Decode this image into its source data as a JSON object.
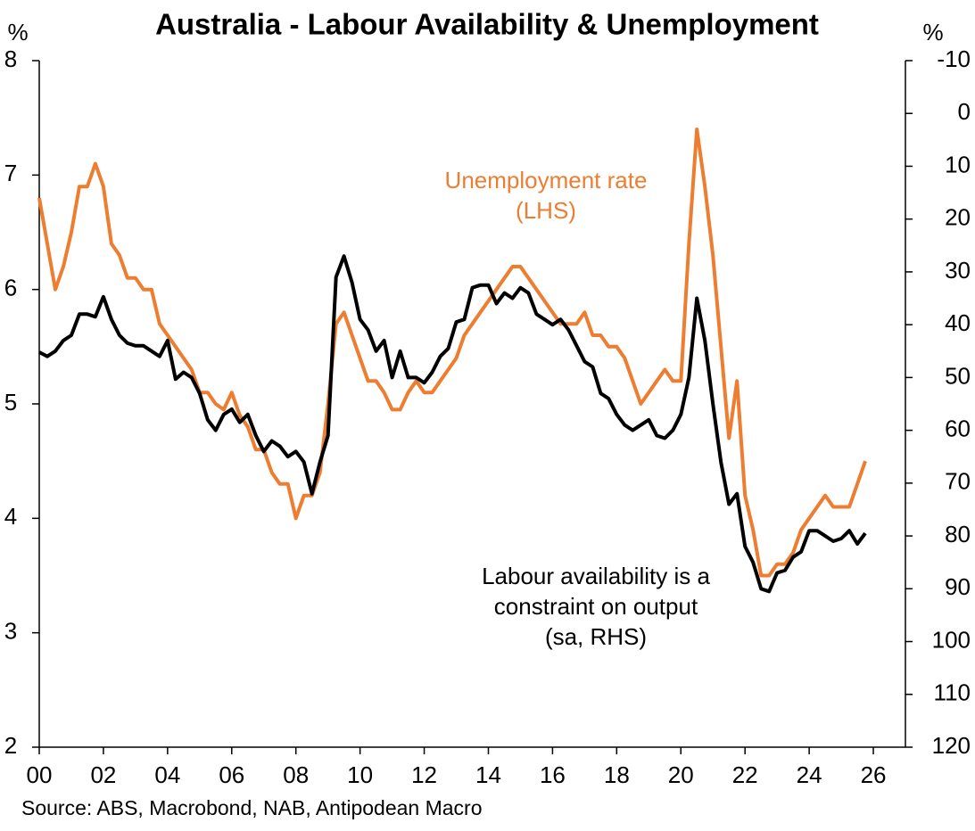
{
  "chart_data": {
    "type": "line",
    "title": "Australia - Labour Availability & Unemployment",
    "y_label": "%",
    "y2_label": "%",
    "source": "Source: ABS, Macrobond, NAB, Antipodean Macro",
    "annotations": [
      {
        "lines": [
          "Unemployment rate",
          "(LHS)"
        ],
        "color": "#ed7d31"
      },
      {
        "lines": [
          "Labour availability is a",
          "constraint on output",
          "(sa, RHS)"
        ],
        "color": "#000000"
      }
    ],
    "xlim": [
      2000,
      2027
    ],
    "xticks": [
      {
        "value": 2000,
        "label": "00"
      },
      {
        "value": 2002,
        "label": "02"
      },
      {
        "value": 2004,
        "label": "04"
      },
      {
        "value": 2006,
        "label": "06"
      },
      {
        "value": 2008,
        "label": "08"
      },
      {
        "value": 2010,
        "label": "10"
      },
      {
        "value": 2012,
        "label": "12"
      },
      {
        "value": 2014,
        "label": "14"
      },
      {
        "value": 2016,
        "label": "16"
      },
      {
        "value": 2018,
        "label": "18"
      },
      {
        "value": 2020,
        "label": "20"
      },
      {
        "value": 2022,
        "label": "22"
      },
      {
        "value": 2024,
        "label": "24"
      },
      {
        "value": 2026,
        "label": "26"
      }
    ],
    "ylim": [
      2,
      8
    ],
    "yticks": [
      2,
      3,
      4,
      5,
      6,
      7,
      8
    ],
    "y2lim": [
      120,
      -10
    ],
    "y2ticks": [
      120,
      110,
      100,
      90,
      80,
      70,
      60,
      50,
      40,
      30,
      20,
      10,
      0,
      -10
    ],
    "x": [
      2000,
      2000.25,
      2000.5,
      2000.75,
      2001,
      2001.25,
      2001.5,
      2001.75,
      2002,
      2002.25,
      2002.5,
      2002.75,
      2003,
      2003.25,
      2003.5,
      2003.75,
      2004,
      2004.25,
      2004.5,
      2004.75,
      2005,
      2005.25,
      2005.5,
      2005.75,
      2006,
      2006.25,
      2006.5,
      2006.75,
      2007,
      2007.25,
      2007.5,
      2007.75,
      2008,
      2008.25,
      2008.5,
      2008.75,
      2009,
      2009.25,
      2009.5,
      2009.75,
      2010,
      2010.25,
      2010.5,
      2010.75,
      2011,
      2011.25,
      2011.5,
      2011.75,
      2012,
      2012.25,
      2012.5,
      2012.75,
      2013,
      2013.25,
      2013.5,
      2013.75,
      2014,
      2014.25,
      2014.5,
      2014.75,
      2015,
      2015.25,
      2015.5,
      2015.75,
      2016,
      2016.25,
      2016.5,
      2016.75,
      2017,
      2017.25,
      2017.5,
      2017.75,
      2018,
      2018.25,
      2018.5,
      2018.75,
      2019,
      2019.25,
      2019.5,
      2019.75,
      2020,
      2020.25,
      2020.5,
      2020.75,
      2021,
      2021.25,
      2021.5,
      2021.75,
      2022,
      2022.25,
      2022.5,
      2022.75,
      2023,
      2023.25,
      2023.5,
      2023.75,
      2024,
      2024.25,
      2024.5,
      2024.75,
      2025,
      2025.25,
      2025.5,
      2025.75
    ],
    "series": [
      {
        "name": "Unemployment rate",
        "color": "#ed7d31",
        "axis": "y",
        "values": [
          6.8,
          6.4,
          6.0,
          6.2,
          6.5,
          6.9,
          6.9,
          7.1,
          6.9,
          6.4,
          6.3,
          6.1,
          6.1,
          6.0,
          6.0,
          5.7,
          5.6,
          5.5,
          5.4,
          5.3,
          5.1,
          5.1,
          5.0,
          4.95,
          5.1,
          4.9,
          4.8,
          4.6,
          4.6,
          4.4,
          4.3,
          4.3,
          4.0,
          4.2,
          4.2,
          4.4,
          5.0,
          5.7,
          5.8,
          5.6,
          5.4,
          5.2,
          5.2,
          5.1,
          4.95,
          4.95,
          5.1,
          5.2,
          5.1,
          5.1,
          5.2,
          5.3,
          5.4,
          5.6,
          5.7,
          5.8,
          5.9,
          6.0,
          6.1,
          6.2,
          6.2,
          6.1,
          6.0,
          5.9,
          5.8,
          5.7,
          5.7,
          5.7,
          5.8,
          5.6,
          5.6,
          5.5,
          5.5,
          5.4,
          5.2,
          5.0,
          5.1,
          5.2,
          5.3,
          5.2,
          5.2,
          6.4,
          7.4,
          6.9,
          6.3,
          5.5,
          4.7,
          5.2,
          4.2,
          3.9,
          3.5,
          3.5,
          3.6,
          3.6,
          3.7,
          3.9,
          4.0,
          4.1,
          4.2,
          4.1,
          4.1,
          4.1,
          4.3,
          4.5
        ]
      },
      {
        "name": "Labour availability is a constraint on output",
        "color": "#000000",
        "axis": "y2",
        "values": [
          45.2,
          46,
          45,
          43,
          42,
          38,
          38,
          38.5,
          34.7,
          39,
          42,
          43.5,
          44,
          44,
          45,
          46,
          43,
          50.3,
          49,
          50,
          53,
          58,
          60,
          57,
          56,
          58.5,
          57,
          61,
          64,
          62,
          63,
          65,
          64,
          66,
          72,
          66,
          61,
          31,
          27,
          32,
          39,
          41,
          45,
          43,
          50,
          45,
          50,
          50,
          51,
          49,
          46,
          44.5,
          39.5,
          39,
          33,
          32.5,
          32.5,
          36,
          34,
          35,
          33,
          34,
          38,
          39,
          40,
          39,
          41,
          44,
          47,
          48,
          53,
          54,
          57,
          59,
          60,
          59,
          58,
          61,
          61.5,
          60,
          57,
          50,
          35,
          43,
          55,
          66,
          74,
          72,
          82,
          85,
          90,
          90.5,
          87,
          86.5,
          84,
          83,
          79,
          79,
          80,
          81,
          80.5,
          79,
          81.5,
          79.5
        ]
      }
    ]
  }
}
